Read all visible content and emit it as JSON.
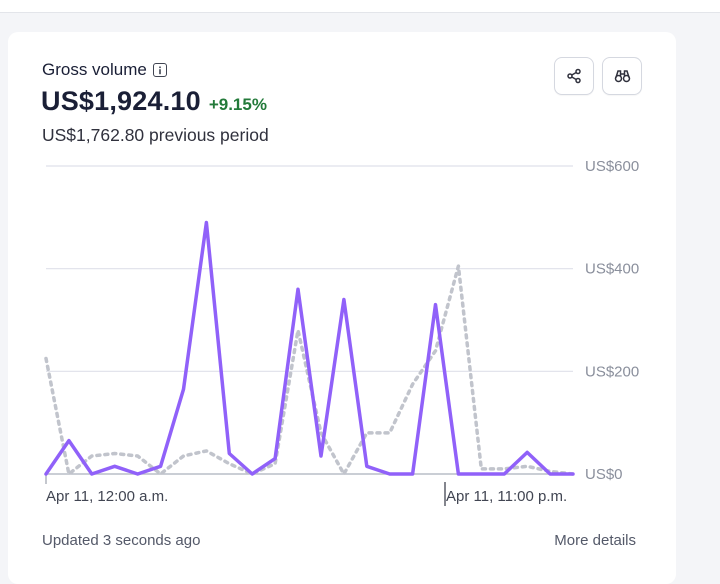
{
  "card": {
    "title": "Gross volume",
    "amount": "US$1,924.10",
    "delta": "+9.15%",
    "previous": "US$1,762.80 previous period",
    "share_icon": "share-icon",
    "explore_icon": "binoculars-icon",
    "info_icon": "info-icon",
    "updated": "Updated 3 seconds ago",
    "more_details": "More details"
  },
  "colors": {
    "current_series": "#9061f9",
    "previous_series": "#c1c4cc",
    "delta_positive": "#237a3a",
    "gridline": "#dfe1ea"
  },
  "chart_data": {
    "type": "line",
    "x_start_label": "Apr 11, 12:00 a.m.",
    "x_end_label": "Apr 11, 11:00 p.m.",
    "ylim": [
      0,
      600
    ],
    "y_ticks": [
      "US$0",
      "US$200",
      "US$400",
      "US$600"
    ],
    "y_tick_values": [
      0,
      200,
      400,
      600
    ],
    "grid": true,
    "series": [
      {
        "style": "solid",
        "values": [
          0,
          65,
          0,
          15,
          0,
          15,
          165,
          490,
          40,
          0,
          30,
          360,
          35,
          340,
          15,
          0,
          0,
          330,
          0,
          0,
          0,
          42,
          0,
          0
        ]
      },
      {
        "style": "dotted",
        "values": [
          225,
          0,
          35,
          40,
          35,
          0,
          35,
          45,
          20,
          0,
          20,
          280,
          80,
          0,
          80,
          80,
          175,
          240,
          405,
          10,
          10,
          15,
          5,
          0
        ]
      }
    ]
  }
}
